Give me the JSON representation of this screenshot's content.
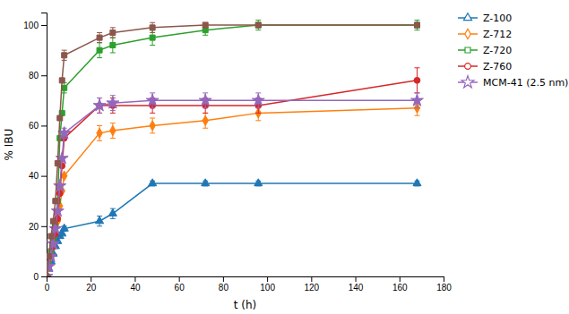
{
  "chart_data": {
    "type": "line",
    "x_label": "t (h)",
    "y_label": "% IBU",
    "xlim": [
      0,
      180
    ],
    "ylim": [
      0,
      105
    ],
    "xticks": [
      0,
      20,
      40,
      60,
      80,
      100,
      120,
      140,
      160,
      180
    ],
    "yticks": [
      0,
      20,
      40,
      60,
      80,
      100
    ],
    "grid": false,
    "legend": "right",
    "x": [
      0,
      1,
      2,
      3,
      4,
      5,
      6,
      7,
      8,
      24,
      30,
      48,
      72,
      96,
      168
    ],
    "series": [
      {
        "name": "Z-100",
        "marker": "triangle",
        "values": [
          0,
          3,
          6,
          9,
          12,
          14,
          16,
          17,
          19,
          22,
          25,
          37,
          37,
          37,
          37
        ],
        "errors": [
          0,
          0,
          0,
          0,
          0,
          0,
          0,
          0,
          1,
          2,
          2,
          1,
          1,
          1,
          1
        ]
      },
      {
        "name": "Z-712",
        "marker": "diamond",
        "values": [
          0,
          4,
          8,
          12,
          17,
          22,
          28,
          34,
          40,
          57,
          58,
          60,
          62,
          65,
          67
        ],
        "errors": [
          0,
          0,
          0,
          0,
          0,
          0,
          0,
          0,
          0,
          3,
          3,
          3,
          3,
          3,
          3
        ]
      },
      {
        "name": "Z-720",
        "marker": "square",
        "values": [
          0,
          5,
          10,
          15,
          20,
          30,
          55,
          65,
          75,
          90,
          92,
          95,
          98,
          100,
          100
        ],
        "errors": [
          0,
          0,
          0,
          0,
          0,
          0,
          0,
          0,
          2,
          3,
          3,
          3,
          2,
          2,
          2
        ]
      },
      {
        "name": "Z-760",
        "marker": "circle",
        "values": [
          0,
          4,
          8,
          12,
          17,
          23,
          33,
          44,
          55,
          68,
          68,
          68,
          68,
          68,
          78
        ],
        "errors": [
          0,
          0,
          0,
          0,
          0,
          0,
          0,
          0,
          0,
          3,
          3,
          3,
          3,
          3,
          5
        ]
      },
      {
        "name": "MCM-41 (2.5 nm)",
        "marker": "star",
        "values": [
          0,
          4,
          8,
          13,
          19,
          26,
          36,
          47,
          57,
          68,
          69,
          70,
          70,
          70,
          70
        ],
        "errors": [
          0,
          0,
          0,
          0,
          0,
          0,
          0,
          0,
          2,
          3,
          3,
          3,
          3,
          3,
          3
        ]
      },
      {
        "marker": "square",
        "values": [
          0,
          8,
          16,
          22,
          30,
          45,
          63,
          78,
          88,
          95,
          97,
          99,
          100,
          100,
          100
        ],
        "errors": [
          0,
          0,
          0,
          0,
          0,
          0,
          0,
          0,
          2,
          2,
          2,
          2,
          1,
          1,
          1
        ]
      }
    ]
  }
}
